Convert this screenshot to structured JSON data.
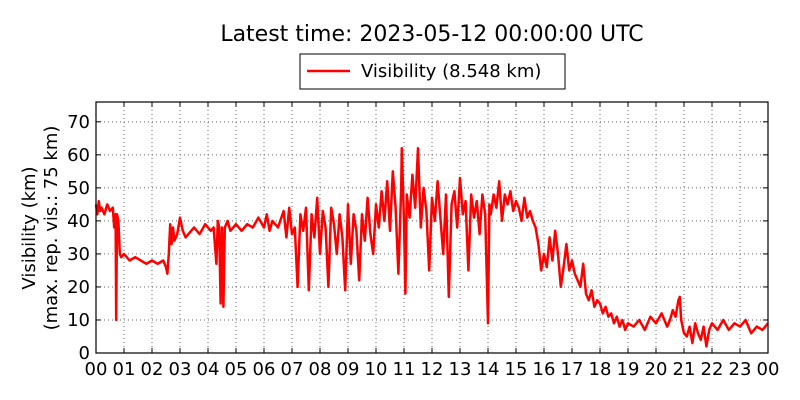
{
  "chart_data": {
    "type": "line",
    "title": "Latest time: 2023-05-12 00:00:00 UTC",
    "xlabel": "",
    "ylabel": "Visibility (km)",
    "ylabel2": "(max. rep. vis.: 75 km)",
    "xlim": [
      0,
      24
    ],
    "ylim": [
      0,
      76
    ],
    "grid": true,
    "legend": "top-center",
    "x_ticks": [
      "00",
      "01",
      "02",
      "03",
      "04",
      "05",
      "06",
      "07",
      "08",
      "09",
      "10",
      "11",
      "12",
      "13",
      "14",
      "15",
      "16",
      "17",
      "18",
      "19",
      "20",
      "21",
      "22",
      "23",
      "00"
    ],
    "y_ticks": [
      0,
      10,
      20,
      30,
      40,
      50,
      60,
      70
    ],
    "series": [
      {
        "name": "Visibility (8.548 km)",
        "color": "#ff0000",
        "points": [
          [
            0.0,
            45
          ],
          [
            0.05,
            42
          ],
          [
            0.1,
            46
          ],
          [
            0.15,
            43
          ],
          [
            0.2,
            44
          ],
          [
            0.3,
            42
          ],
          [
            0.4,
            45
          ],
          [
            0.5,
            43
          ],
          [
            0.6,
            44
          ],
          [
            0.65,
            38
          ],
          [
            0.7,
            42
          ],
          [
            0.72,
            10
          ],
          [
            0.75,
            42
          ],
          [
            0.8,
            40
          ],
          [
            0.85,
            30
          ],
          [
            0.9,
            29
          ],
          [
            1.0,
            30
          ],
          [
            1.2,
            28
          ],
          [
            1.4,
            29
          ],
          [
            1.6,
            28
          ],
          [
            1.8,
            27
          ],
          [
            2.0,
            28
          ],
          [
            2.2,
            27
          ],
          [
            2.4,
            28
          ],
          [
            2.5,
            26
          ],
          [
            2.55,
            24
          ],
          [
            2.6,
            30
          ],
          [
            2.65,
            39
          ],
          [
            2.7,
            33
          ],
          [
            2.75,
            38
          ],
          [
            2.8,
            34
          ],
          [
            2.9,
            36
          ],
          [
            3.0,
            41
          ],
          [
            3.1,
            37
          ],
          [
            3.2,
            35
          ],
          [
            3.3,
            36
          ],
          [
            3.5,
            38
          ],
          [
            3.7,
            36
          ],
          [
            3.9,
            39
          ],
          [
            4.1,
            37
          ],
          [
            4.2,
            38
          ],
          [
            4.3,
            27
          ],
          [
            4.35,
            40
          ],
          [
            4.4,
            38
          ],
          [
            4.45,
            15
          ],
          [
            4.5,
            38
          ],
          [
            4.55,
            14
          ],
          [
            4.6,
            38
          ],
          [
            4.7,
            40
          ],
          [
            4.8,
            37
          ],
          [
            5.0,
            39
          ],
          [
            5.2,
            37
          ],
          [
            5.4,
            39
          ],
          [
            5.6,
            38
          ],
          [
            5.8,
            41
          ],
          [
            6.0,
            38
          ],
          [
            6.1,
            42
          ],
          [
            6.2,
            37
          ],
          [
            6.3,
            40
          ],
          [
            6.5,
            38
          ],
          [
            6.7,
            43
          ],
          [
            6.8,
            35
          ],
          [
            6.9,
            44
          ],
          [
            7.0,
            36
          ],
          [
            7.1,
            38
          ],
          [
            7.2,
            20
          ],
          [
            7.3,
            42
          ],
          [
            7.4,
            37
          ],
          [
            7.5,
            44
          ],
          [
            7.6,
            19
          ],
          [
            7.7,
            42
          ],
          [
            7.8,
            35
          ],
          [
            7.9,
            47
          ],
          [
            8.0,
            30
          ],
          [
            8.1,
            43
          ],
          [
            8.2,
            38
          ],
          [
            8.3,
            20
          ],
          [
            8.4,
            44
          ],
          [
            8.5,
            39
          ],
          [
            8.6,
            30
          ],
          [
            8.7,
            42
          ],
          [
            8.8,
            35
          ],
          [
            8.9,
            19
          ],
          [
            9.0,
            45
          ],
          [
            9.1,
            27
          ],
          [
            9.2,
            42
          ],
          [
            9.3,
            37
          ],
          [
            9.4,
            22
          ],
          [
            9.5,
            42
          ],
          [
            9.6,
            34
          ],
          [
            9.7,
            47
          ],
          [
            9.8,
            36
          ],
          [
            9.9,
            30
          ],
          [
            10.0,
            45
          ],
          [
            10.1,
            38
          ],
          [
            10.2,
            49
          ],
          [
            10.3,
            40
          ],
          [
            10.4,
            52
          ],
          [
            10.5,
            37
          ],
          [
            10.6,
            55
          ],
          [
            10.7,
            44
          ],
          [
            10.8,
            24
          ],
          [
            10.9,
            50
          ],
          [
            10.92,
            62
          ],
          [
            11.0,
            40
          ],
          [
            11.05,
            18
          ],
          [
            11.1,
            48
          ],
          [
            11.2,
            41
          ],
          [
            11.3,
            54
          ],
          [
            11.4,
            44
          ],
          [
            11.5,
            62
          ],
          [
            11.6,
            38
          ],
          [
            11.7,
            50
          ],
          [
            11.8,
            43
          ],
          [
            11.9,
            25
          ],
          [
            12.0,
            47
          ],
          [
            12.1,
            40
          ],
          [
            12.2,
            52
          ],
          [
            12.3,
            41
          ],
          [
            12.4,
            30
          ],
          [
            12.5,
            48
          ],
          [
            12.6,
            17
          ],
          [
            12.7,
            45
          ],
          [
            12.8,
            49
          ],
          [
            12.9,
            38
          ],
          [
            13.0,
            53
          ],
          [
            13.1,
            42
          ],
          [
            13.2,
            46
          ],
          [
            13.3,
            25
          ],
          [
            13.4,
            48
          ],
          [
            13.5,
            41
          ],
          [
            13.6,
            46
          ],
          [
            13.7,
            36
          ],
          [
            13.8,
            48
          ],
          [
            13.9,
            42
          ],
          [
            14.0,
            9
          ],
          [
            14.05,
            45
          ],
          [
            14.1,
            42
          ],
          [
            14.2,
            48
          ],
          [
            14.3,
            44
          ],
          [
            14.4,
            52
          ],
          [
            14.5,
            40
          ],
          [
            14.6,
            48
          ],
          [
            14.7,
            45
          ],
          [
            14.8,
            49
          ],
          [
            14.9,
            43
          ],
          [
            15.0,
            46
          ],
          [
            15.1,
            44
          ],
          [
            15.2,
            40
          ],
          [
            15.3,
            47
          ],
          [
            15.4,
            41
          ],
          [
            15.5,
            43
          ],
          [
            15.6,
            40
          ],
          [
            15.7,
            38
          ],
          [
            15.8,
            33
          ],
          [
            15.9,
            25
          ],
          [
            16.0,
            30
          ],
          [
            16.1,
            26
          ],
          [
            16.2,
            35
          ],
          [
            16.3,
            28
          ],
          [
            16.4,
            37
          ],
          [
            16.5,
            30
          ],
          [
            16.6,
            20
          ],
          [
            16.7,
            26
          ],
          [
            16.8,
            33
          ],
          [
            16.9,
            25
          ],
          [
            17.0,
            28
          ],
          [
            17.1,
            24
          ],
          [
            17.2,
            22
          ],
          [
            17.3,
            20
          ],
          [
            17.4,
            27
          ],
          [
            17.5,
            18
          ],
          [
            17.6,
            16
          ],
          [
            17.7,
            19
          ],
          [
            17.8,
            14
          ],
          [
            17.9,
            16
          ],
          [
            18.0,
            15
          ],
          [
            18.1,
            12
          ],
          [
            18.2,
            14
          ],
          [
            18.3,
            11
          ],
          [
            18.4,
            12
          ],
          [
            18.5,
            9
          ],
          [
            18.6,
            11
          ],
          [
            18.7,
            8
          ],
          [
            18.8,
            10
          ],
          [
            18.9,
            7
          ],
          [
            19.0,
            9
          ],
          [
            19.2,
            8
          ],
          [
            19.4,
            10
          ],
          [
            19.6,
            7
          ],
          [
            19.8,
            11
          ],
          [
            20.0,
            9
          ],
          [
            20.2,
            12
          ],
          [
            20.4,
            8
          ],
          [
            20.5,
            10
          ],
          [
            20.6,
            13
          ],
          [
            20.7,
            11
          ],
          [
            20.8,
            16
          ],
          [
            20.85,
            17
          ],
          [
            20.9,
            10
          ],
          [
            21.0,
            6
          ],
          [
            21.1,
            5
          ],
          [
            21.2,
            8
          ],
          [
            21.3,
            3
          ],
          [
            21.4,
            9
          ],
          [
            21.5,
            6
          ],
          [
            21.6,
            4
          ],
          [
            21.7,
            8
          ],
          [
            21.8,
            2
          ],
          [
            21.9,
            7
          ],
          [
            22.0,
            9
          ],
          [
            22.2,
            7
          ],
          [
            22.4,
            10
          ],
          [
            22.6,
            7
          ],
          [
            22.8,
            9
          ],
          [
            23.0,
            8
          ],
          [
            23.2,
            10
          ],
          [
            23.4,
            6
          ],
          [
            23.6,
            8
          ],
          [
            23.8,
            7
          ],
          [
            24.0,
            9
          ]
        ]
      }
    ]
  }
}
